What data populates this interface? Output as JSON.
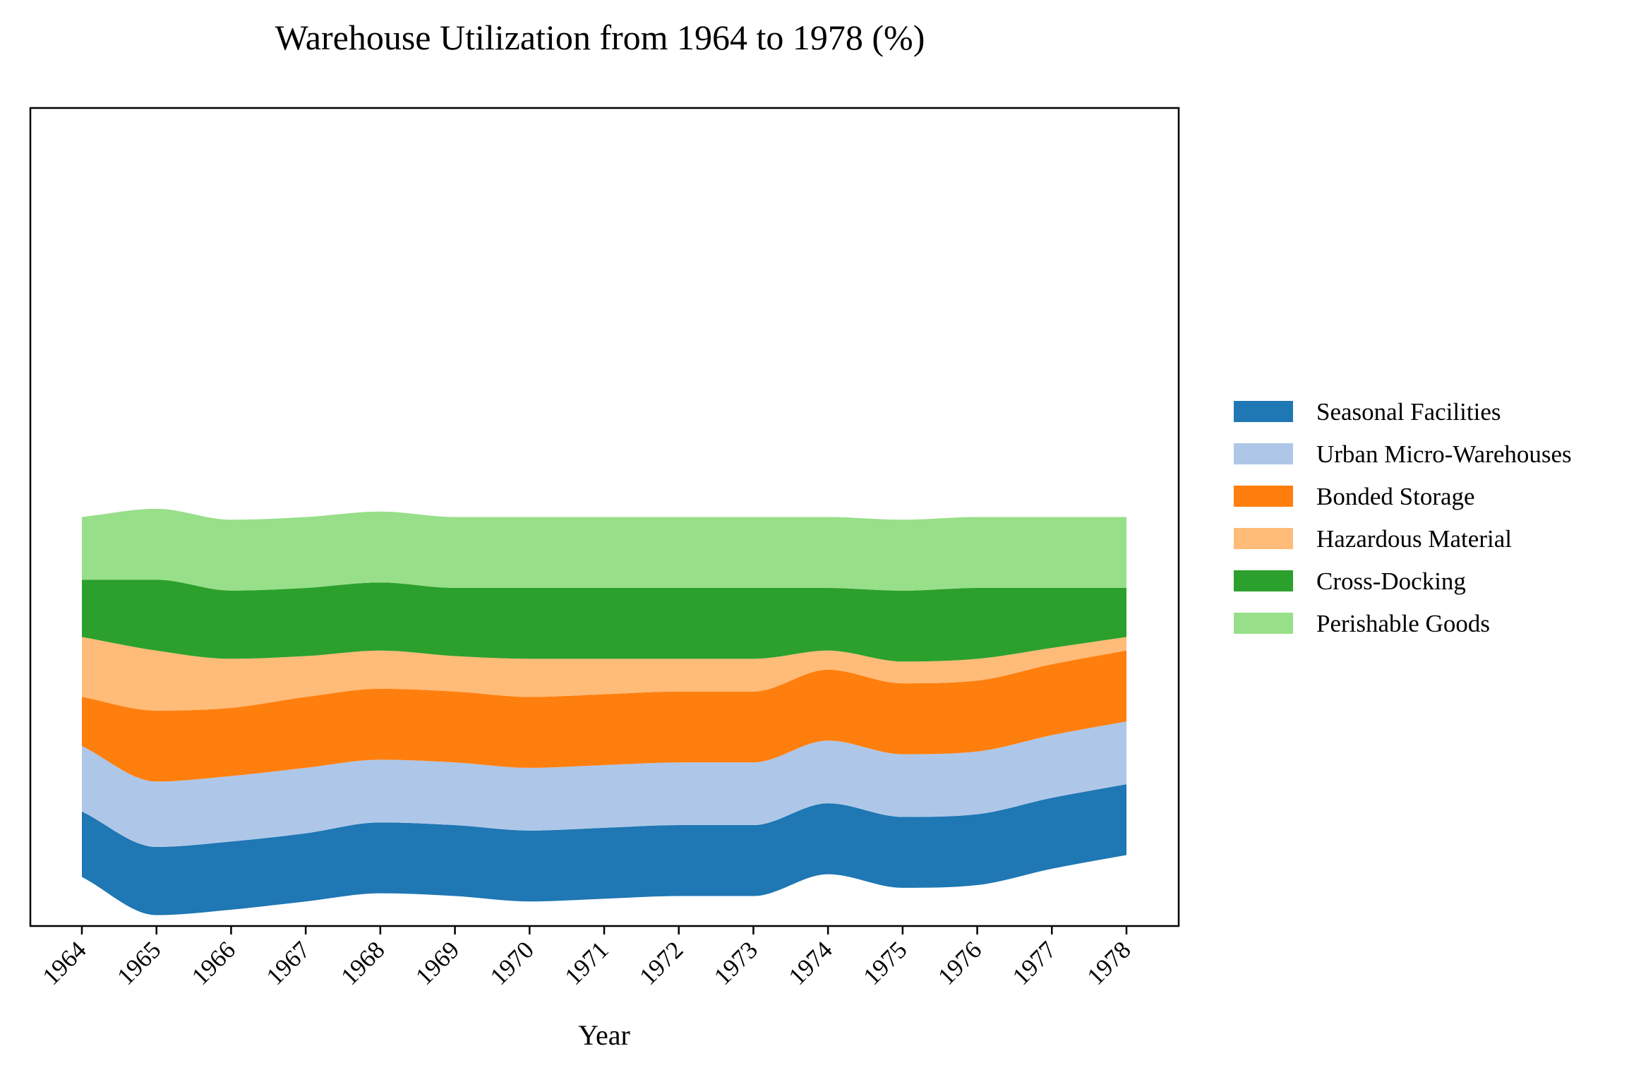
{
  "chart_data": {
    "type": "area",
    "subtype": "streamgraph",
    "title": "Warehouse Utilization from 1964 to 1978 (%)",
    "xlabel": "Year",
    "ylabel": "",
    "x": [
      "1964",
      "1965",
      "1966",
      "1967",
      "1968",
      "1969",
      "1970",
      "1971",
      "1972",
      "1973",
      "1974",
      "1975",
      "1976",
      "1977",
      "1978"
    ],
    "series": [
      {
        "name": "Seasonal Facilities",
        "color": "#1f77b4",
        "values": [
          24,
          25,
          25,
          25,
          26,
          26,
          26,
          26,
          26,
          26,
          26,
          26,
          26,
          26,
          26
        ]
      },
      {
        "name": "Urban Micro-Warehouses",
        "color": "#aec7e8",
        "values": [
          24,
          24,
          24,
          24,
          23,
          23,
          23,
          23,
          23,
          23,
          23,
          23,
          23,
          23,
          23
        ]
      },
      {
        "name": "Bonded Storage",
        "color": "#ff7f0e",
        "values": [
          18,
          26,
          25,
          26,
          26,
          26,
          26,
          26,
          26,
          26,
          26,
          26,
          26,
          26,
          26
        ]
      },
      {
        "name": "Hazardous Material",
        "color": "#ffbb78",
        "values": [
          22,
          22,
          18,
          15,
          14,
          13,
          14,
          13,
          12,
          12,
          7,
          8,
          8,
          6,
          5
        ]
      },
      {
        "name": "Cross-Docking",
        "color": "#2ca02c",
        "values": [
          21,
          26,
          25,
          25,
          25,
          25,
          26,
          26,
          26,
          26,
          23,
          26,
          26,
          22,
          18
        ]
      },
      {
        "name": "Perishable Goods",
        "color": "#98df8a",
        "values": [
          23,
          26,
          26,
          26,
          26,
          26,
          26,
          26,
          26,
          26,
          26,
          26,
          26,
          26,
          26
        ]
      }
    ],
    "baseline": [
      -132,
      -146,
      -144,
      -141,
      -138,
      -139,
      -141,
      -140,
      -139,
      -139,
      -131,
      -136,
      -135,
      -129,
      -124
    ],
    "ylim": [
      -150,
      150
    ],
    "grid": false,
    "legend": "right"
  }
}
